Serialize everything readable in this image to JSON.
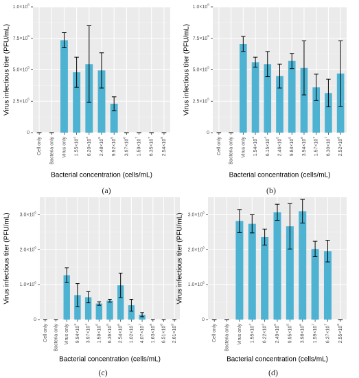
{
  "panels": [
    {
      "caption": "(a)",
      "chart_data": {
        "type": "bar",
        "ylabel": "Virus infectious titer (PFU/mL)",
        "xlabel": "Bacterial concentration (cells/mL)",
        "ylim": [
          0,
          1000000
        ],
        "yticks": [
          {
            "value": 0,
            "base": "0",
            "exp": ""
          },
          {
            "value": 250000,
            "base": "2.5×10",
            "exp": "5"
          },
          {
            "value": 500000,
            "base": "5.0×10",
            "exp": "5"
          },
          {
            "value": 750000,
            "base": "7.5×10",
            "exp": "5"
          },
          {
            "value": 1000000,
            "base": "1.0×10",
            "exp": "6"
          }
        ],
        "categories": [
          {
            "base": "Cell only",
            "exp": ""
          },
          {
            "base": "Bacteria only",
            "exp": ""
          },
          {
            "base": "Virus only",
            "exp": ""
          },
          {
            "base": "1.55×10",
            "exp": "4"
          },
          {
            "base": "6.20×10",
            "exp": "4"
          },
          {
            "base": "2.48×10",
            "exp": "5"
          },
          {
            "base": "9.92×10",
            "exp": "5"
          },
          {
            "base": "3.97×10",
            "exp": "6"
          },
          {
            "base": "1.59×10",
            "exp": "7"
          },
          {
            "base": "6.35×10",
            "exp": "7"
          },
          {
            "base": "2.54×10",
            "exp": "8"
          }
        ],
        "values": [
          0,
          0,
          735000,
          480000,
          545000,
          495000,
          230000,
          0,
          0,
          0,
          0
        ],
        "errors": [
          0,
          0,
          60000,
          120000,
          305000,
          140000,
          55000,
          0,
          0,
          0,
          0
        ],
        "color": "#4eb3d3",
        "grid": true
      }
    },
    {
      "caption": "(b)",
      "chart_data": {
        "type": "bar",
        "ylabel": "Virus infectious titer (PFU/mL)",
        "xlabel": "Bacterial concentration (cells/mL)",
        "ylim": [
          0,
          1000000
        ],
        "yticks": [
          {
            "value": 0,
            "base": "0",
            "exp": ""
          },
          {
            "value": 250000,
            "base": "2.5×10",
            "exp": "5"
          },
          {
            "value": 500000,
            "base": "5.0×10",
            "exp": "5"
          },
          {
            "value": 750000,
            "base": "7.5×10",
            "exp": "5"
          },
          {
            "value": 1000000,
            "base": "1.0×10",
            "exp": "6"
          }
        ],
        "categories": [
          {
            "base": "Cell only",
            "exp": ""
          },
          {
            "base": "Bacteria only",
            "exp": ""
          },
          {
            "base": "Virus only",
            "exp": ""
          },
          {
            "base": "1.54×10",
            "exp": "4"
          },
          {
            "base": "6.15×10",
            "exp": "4"
          },
          {
            "base": "2.46×10",
            "exp": "5"
          },
          {
            "base": "9.84×10",
            "exp": "5"
          },
          {
            "base": "3.94×10",
            "exp": "6"
          },
          {
            "base": "1.57×10",
            "exp": "7"
          },
          {
            "base": "6.30×10",
            "exp": "7"
          },
          {
            "base": "2.52×10",
            "exp": "8"
          }
        ],
        "values": [
          0,
          0,
          705000,
          560000,
          545000,
          450000,
          570000,
          515000,
          360000,
          315000,
          470000
        ],
        "errors": [
          0,
          0,
          60000,
          40000,
          100000,
          95000,
          60000,
          215000,
          105000,
          110000,
          260000
        ],
        "color": "#4eb3d3",
        "grid": true
      }
    },
    {
      "caption": "(c)",
      "chart_data": {
        "type": "bar",
        "ylabel": "Virus infectious titer (PFU/mL)",
        "xlabel": "Bacterial concentration (cells/mL)",
        "ylim": [
          0,
          3500000
        ],
        "yticks": [
          {
            "value": 0,
            "base": "0",
            "exp": ""
          },
          {
            "value": 1000000,
            "base": "1.0×10",
            "exp": "6"
          },
          {
            "value": 2000000,
            "base": "2.0×10",
            "exp": "6"
          },
          {
            "value": 3000000,
            "base": "3.0×10",
            "exp": "6"
          }
        ],
        "categories": [
          {
            "base": "Cell only",
            "exp": ""
          },
          {
            "base": "Bacteria only",
            "exp": ""
          },
          {
            "base": "Virus only",
            "exp": ""
          },
          {
            "base": "9.94×10",
            "exp": "3"
          },
          {
            "base": "3.97×10",
            "exp": "4"
          },
          {
            "base": "1.59×10",
            "exp": "5"
          },
          {
            "base": "6.36×10",
            "exp": "5"
          },
          {
            "base": "2.54×10",
            "exp": "6"
          },
          {
            "base": "1.02×10",
            "exp": "7"
          },
          {
            "base": "4.07×10",
            "exp": "7"
          },
          {
            "base": "1.63×10",
            "exp": "8"
          },
          {
            "base": "6.51×10",
            "exp": "8"
          },
          {
            "base": "2.61×10",
            "exp": "9"
          }
        ],
        "values": [
          0,
          0,
          1270000,
          700000,
          640000,
          460000,
          540000,
          980000,
          410000,
          140000,
          0,
          0,
          0
        ],
        "errors": [
          0,
          0,
          210000,
          330000,
          160000,
          50000,
          40000,
          350000,
          170000,
          60000,
          0,
          0,
          0
        ],
        "color": "#4eb3d3",
        "grid": true
      }
    },
    {
      "caption": "(d)",
      "chart_data": {
        "type": "bar",
        "ylabel": "Virus infectious titer (PFU/mL)",
        "xlabel": "Bacterial concentration (cells/mL)",
        "ylim": [
          0,
          3500000
        ],
        "yticks": [
          {
            "value": 0,
            "base": "0",
            "exp": ""
          },
          {
            "value": 1000000,
            "base": "1.0×10",
            "exp": "6"
          },
          {
            "value": 2000000,
            "base": "2.0×10",
            "exp": "6"
          },
          {
            "value": 3000000,
            "base": "3.0×10",
            "exp": "6"
          }
        ],
        "categories": [
          {
            "base": "Cell only",
            "exp": ""
          },
          {
            "base": "Bacteria only",
            "exp": ""
          },
          {
            "base": "Virus only",
            "exp": ""
          },
          {
            "base": "1.55×10",
            "exp": "4"
          },
          {
            "base": "6.22×10",
            "exp": "4"
          },
          {
            "base": "2.49×10",
            "exp": "5"
          },
          {
            "base": "9.95×10",
            "exp": "5"
          },
          {
            "base": "3.98×10",
            "exp": "6"
          },
          {
            "base": "1.59×10",
            "exp": "7"
          },
          {
            "base": "6.37×10",
            "exp": "7"
          },
          {
            "base": "2.55×10",
            "exp": "8"
          }
        ],
        "values": [
          0,
          0,
          2820000,
          2740000,
          2360000,
          3070000,
          2670000,
          3100000,
          2020000,
          1960000,
          0
        ],
        "errors": [
          0,
          0,
          330000,
          260000,
          230000,
          230000,
          650000,
          340000,
          220000,
          310000,
          0
        ],
        "color": "#4eb3d3",
        "grid": true
      }
    }
  ]
}
